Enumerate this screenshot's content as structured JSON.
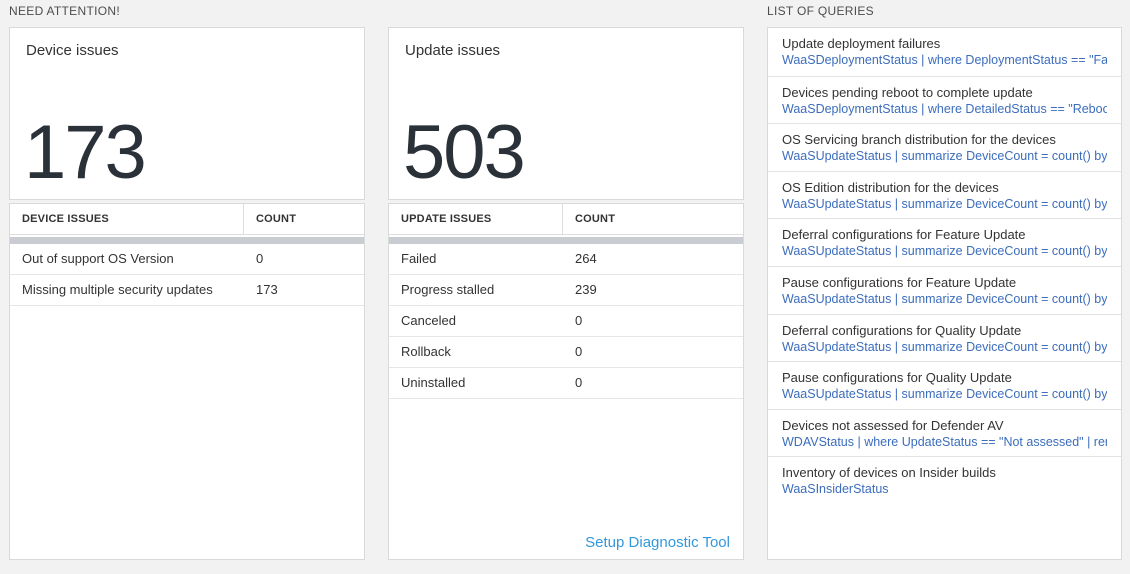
{
  "need_attention": {
    "section_label": "NEED ATTENTION!",
    "tiles": [
      {
        "title": "Device issues",
        "value": "173",
        "table": {
          "columns": [
            "DEVICE ISSUES",
            "COUNT"
          ],
          "rows": [
            {
              "label": "Out of support OS Version",
              "count": "0"
            },
            {
              "label": "Missing multiple security updates",
              "count": "173"
            }
          ]
        }
      },
      {
        "title": "Update issues",
        "value": "503",
        "table": {
          "columns": [
            "UPDATE ISSUES",
            "COUNT"
          ],
          "rows": [
            {
              "label": "Failed",
              "count": "264"
            },
            {
              "label": "Progress stalled",
              "count": "239"
            },
            {
              "label": "Canceled",
              "count": "0"
            },
            {
              "label": "Rollback",
              "count": "0"
            },
            {
              "label": "Uninstalled",
              "count": "0"
            }
          ]
        },
        "footer_link": "Setup Diagnostic Tool"
      }
    ]
  },
  "queries": {
    "section_label": "LIST OF QUERIES",
    "items": [
      {
        "title": "Update deployment failures",
        "query": "WaaSDeploymentStatus | where DeploymentStatus == \"Failed\" |..."
      },
      {
        "title": "Devices pending reboot to complete update",
        "query": "WaaSDeploymentStatus | where DetailedStatus == \"Reboot pend..."
      },
      {
        "title": "OS Servicing branch distribution for the devices",
        "query": "WaaSUpdateStatus | summarize DeviceCount = count() by OSSer..."
      },
      {
        "title": "OS Edition distribution for the devices",
        "query": "WaaSUpdateStatus | summarize DeviceCount = count() by OSEdit..."
      },
      {
        "title": "Deferral configurations for Feature Update",
        "query": "WaaSUpdateStatus | summarize DeviceCount = count() by Featur..."
      },
      {
        "title": "Pause configurations for Feature Update",
        "query": "WaaSUpdateStatus | summarize DeviceCount = count() by Featur..."
      },
      {
        "title": "Deferral configurations for Quality Update",
        "query": "WaaSUpdateStatus | summarize DeviceCount = count() by Qualit..."
      },
      {
        "title": "Pause configurations for Quality Update",
        "query": "WaaSUpdateStatus | summarize DeviceCount = count() by Qualit..."
      },
      {
        "title": "Devices not assessed for Defender AV",
        "query": "WDAVStatus | where UpdateStatus == \"Not assessed\" | render ta..."
      },
      {
        "title": "Inventory of devices on Insider builds",
        "query": "WaaSInsiderStatus"
      }
    ]
  },
  "colors": {
    "page_background": "#f2f2f2",
    "big_number": "#2b3138",
    "query_text_blue": "#3b6dbd",
    "diagnostic_link_blue": "#3398db",
    "scrollbar_gray": "#c9ccd1"
  }
}
